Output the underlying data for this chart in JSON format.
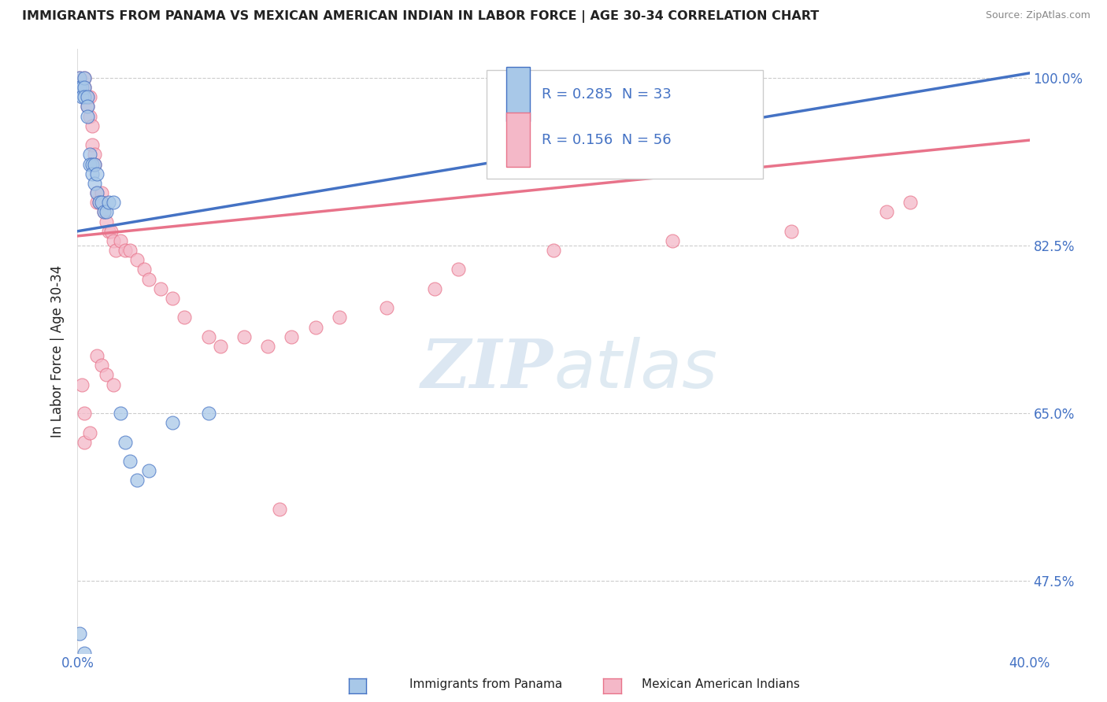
{
  "title": "IMMIGRANTS FROM PANAMA VS MEXICAN AMERICAN INDIAN IN LABOR FORCE | AGE 30-34 CORRELATION CHART",
  "source": "Source: ZipAtlas.com",
  "ylabel": "In Labor Force | Age 30-34",
  "xlim": [
    0.0,
    0.4
  ],
  "ylim": [
    0.4,
    1.03
  ],
  "xticks": [
    0.0,
    0.05,
    0.1,
    0.15,
    0.2,
    0.25,
    0.3,
    0.35,
    0.4
  ],
  "xticklabels": [
    "0.0%",
    "",
    "",
    "",
    "",
    "",
    "",
    "",
    "40.0%"
  ],
  "yticks": [
    0.475,
    0.65,
    0.825,
    1.0
  ],
  "yticklabels": [
    "47.5%",
    "65.0%",
    "82.5%",
    "100.0%"
  ],
  "blue_fill": "#a8c8e8",
  "blue_edge": "#4472C4",
  "pink_fill": "#f4b8c8",
  "pink_edge": "#E8738A",
  "blue_line_color": "#4472C4",
  "pink_line_color": "#E8738A",
  "R_blue": 0.285,
  "N_blue": 33,
  "R_pink": 0.156,
  "N_pink": 56,
  "blue_line_x0": 0.0,
  "blue_line_y0": 0.84,
  "blue_line_x1": 0.4,
  "blue_line_y1": 1.005,
  "pink_line_x0": 0.0,
  "pink_line_y0": 0.835,
  "pink_line_x1": 0.4,
  "pink_line_y1": 0.935,
  "blue_x": [
    0.001,
    0.001,
    0.002,
    0.002,
    0.003,
    0.003,
    0.003,
    0.004,
    0.004,
    0.004,
    0.005,
    0.005,
    0.006,
    0.006,
    0.007,
    0.007,
    0.008,
    0.008,
    0.009,
    0.01,
    0.011,
    0.012,
    0.013,
    0.015,
    0.018,
    0.02,
    0.022,
    0.025,
    0.03,
    0.04,
    0.055,
    0.001,
    0.003
  ],
  "blue_y": [
    1.0,
    0.99,
    0.99,
    0.98,
    1.0,
    0.99,
    0.98,
    0.98,
    0.97,
    0.96,
    0.92,
    0.91,
    0.91,
    0.9,
    0.91,
    0.89,
    0.9,
    0.88,
    0.87,
    0.87,
    0.86,
    0.86,
    0.87,
    0.87,
    0.65,
    0.62,
    0.6,
    0.58,
    0.59,
    0.64,
    0.65,
    0.42,
    0.4
  ],
  "pink_x": [
    0.001,
    0.002,
    0.003,
    0.003,
    0.004,
    0.004,
    0.005,
    0.005,
    0.006,
    0.006,
    0.007,
    0.007,
    0.008,
    0.008,
    0.009,
    0.01,
    0.01,
    0.011,
    0.012,
    0.013,
    0.014,
    0.015,
    0.016,
    0.018,
    0.02,
    0.022,
    0.025,
    0.028,
    0.03,
    0.035,
    0.04,
    0.045,
    0.055,
    0.06,
    0.07,
    0.08,
    0.085,
    0.09,
    0.1,
    0.11,
    0.13,
    0.15,
    0.16,
    0.2,
    0.25,
    0.3,
    0.34,
    0.35,
    0.002,
    0.003,
    0.003,
    0.005,
    0.008,
    0.01,
    0.012,
    0.015
  ],
  "pink_y": [
    1.0,
    0.99,
    1.0,
    0.99,
    0.98,
    0.97,
    0.98,
    0.96,
    0.95,
    0.93,
    0.92,
    0.91,
    0.88,
    0.87,
    0.87,
    0.88,
    0.87,
    0.86,
    0.85,
    0.84,
    0.84,
    0.83,
    0.82,
    0.83,
    0.82,
    0.82,
    0.81,
    0.8,
    0.79,
    0.78,
    0.77,
    0.75,
    0.73,
    0.72,
    0.73,
    0.72,
    0.55,
    0.73,
    0.74,
    0.75,
    0.76,
    0.78,
    0.8,
    0.82,
    0.83,
    0.84,
    0.86,
    0.87,
    0.68,
    0.65,
    0.62,
    0.63,
    0.71,
    0.7,
    0.69,
    0.68
  ],
  "watermark_zip": "ZIP",
  "watermark_atlas": "atlas",
  "background_color": "#ffffff",
  "grid_color": "#cccccc",
  "label_color": "#4472C4",
  "title_color": "#222222"
}
